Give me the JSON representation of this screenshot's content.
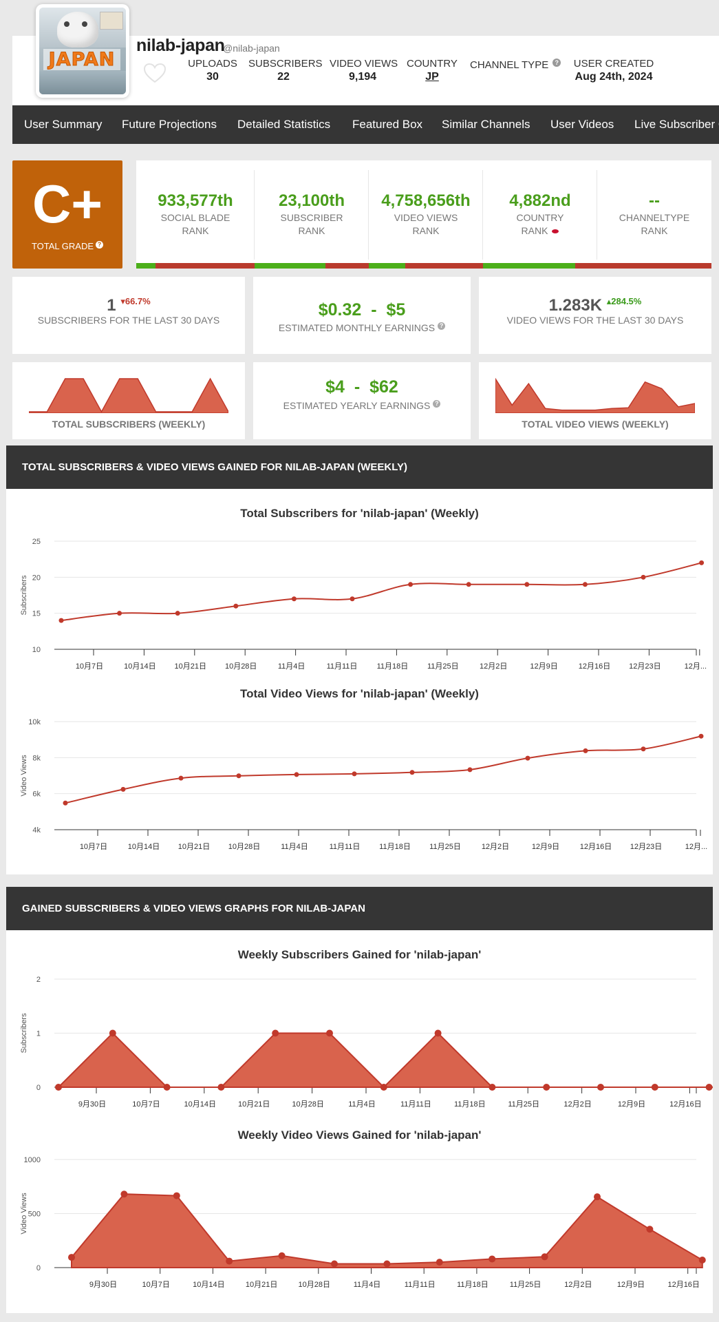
{
  "profile": {
    "name": "nilab-japan",
    "handle": "@nilab-japan",
    "avatar_text": "JAPAN"
  },
  "header_stats": [
    {
      "label": "UPLOADS",
      "value": "30"
    },
    {
      "label": "SUBSCRIBERS",
      "value": "22"
    },
    {
      "label": "VIDEO VIEWS",
      "value": "9,194"
    },
    {
      "label": "COUNTRY",
      "value": "JP"
    },
    {
      "label": "CHANNEL TYPE",
      "value": ""
    },
    {
      "label": "USER CREATED",
      "value": "Aug 24th, 2024"
    }
  ],
  "nav": {
    "items": [
      "User Summary",
      "Future Projections",
      "Detailed Statistics",
      "Featured Box",
      "Similar Channels",
      "User Videos",
      "Live Subscriber Count"
    ]
  },
  "grade": {
    "letter": "C+",
    "label": "TOTAL GRADE"
  },
  "ranks": [
    {
      "value": "933,577th",
      "label1": "SOCIAL BLADE",
      "label2": "RANK",
      "green_fraction": 0.16
    },
    {
      "value": "23,100th",
      "label1": "SUBSCRIBER",
      "label2": "RANK",
      "green_fraction": 0.62
    },
    {
      "value": "4,758,656th",
      "label1": "VIDEO VIEWS",
      "label2": "RANK",
      "green_fraction": 0.32
    },
    {
      "value": "4,882nd",
      "label1": "COUNTRY",
      "label2": "RANK",
      "green_fraction": 0.81
    },
    {
      "value": "--",
      "label1": "CHANNELTYPE",
      "label2": "RANK",
      "green_fraction": 0
    }
  ],
  "stats": {
    "subs_30": {
      "value": "1",
      "change": "66.7%",
      "label": "SUBSCRIBERS FOR THE LAST 30 DAYS"
    },
    "monthly": {
      "low": "$0.32",
      "sep": "-",
      "high": "$5",
      "label": "ESTIMATED MONTHLY EARNINGS"
    },
    "views_30": {
      "value": "1.283K",
      "change": "284.5%",
      "label": "VIDEO VIEWS FOR THE LAST 30 DAYS"
    },
    "yearly": {
      "low": "$4",
      "sep": "-",
      "high": "$62",
      "label": "ESTIMATED YEARLY EARNINGS"
    },
    "spark_subs_label": "TOTAL SUBSCRIBERS (WEEKLY)",
    "spark_views_label": "TOTAL VIDEO VIEWS (WEEKLY)"
  },
  "sparklines": {
    "subs": [
      0,
      0,
      1,
      1,
      0,
      1,
      1,
      0,
      0,
      0,
      1,
      0
    ],
    "views": [
      100,
      20,
      85,
      10,
      5,
      5,
      5,
      10,
      12,
      90,
      70,
      15,
      25
    ]
  },
  "section1": {
    "title": "TOTAL SUBSCRIBERS & VIDEO VIEWS GAINED FOR NILAB-JAPAN (WEEKLY)"
  },
  "section2": {
    "title": "GAINED SUBSCRIBERS & VIDEO VIEWS GRAPHS FOR NILAB-JAPAN"
  },
  "colors": {
    "accent": "#c0392b",
    "fill": "#d9634d",
    "green": "#4a9e1c",
    "grade": "#c0620a",
    "dark": "#353535"
  },
  "chart_data": [
    {
      "type": "line",
      "title": "Total Subscribers for 'nilab-japan' (Weekly)",
      "ylabel": "Subscribers",
      "ylim": [
        10,
        25
      ],
      "yticks": [
        10,
        15,
        20,
        25
      ],
      "x_tick_labels": [
        "10月7日",
        "10月14日",
        "10月21日",
        "10月28日",
        "11月4日",
        "11月11日",
        "11月18日",
        "11月25日",
        "12月2日",
        "12月9日",
        "12月16日",
        "12月23日",
        "12月..."
      ],
      "values": [
        14,
        15,
        15,
        16,
        17,
        17,
        19,
        19,
        19,
        19,
        20,
        22
      ]
    },
    {
      "type": "line",
      "title": "Total Video Views for 'nilab-japan' (Weekly)",
      "ylabel": "Video Views",
      "ylim": [
        4000,
        10000
      ],
      "yticks": [
        "4k",
        "6k",
        "8k",
        "10k"
      ],
      "x_tick_labels": [
        "10月7日",
        "10月14日",
        "10月21日",
        "10月28日",
        "11月4日",
        "11月11日",
        "11月18日",
        "11月25日",
        "12月2日",
        "12月9日",
        "12月16日",
        "12月23日",
        "12月..."
      ],
      "values": [
        5480,
        6240,
        6860,
        6990,
        7060,
        7100,
        7180,
        7330,
        7970,
        8380,
        8480,
        9190
      ]
    },
    {
      "type": "area",
      "title": "Weekly Subscribers Gained for 'nilab-japan'",
      "ylabel": "Subscribers",
      "ylim": [
        0,
        2
      ],
      "yticks": [
        0,
        1,
        2
      ],
      "x_tick_labels": [
        "9月30日",
        "10月7日",
        "10月14日",
        "10月21日",
        "10月28日",
        "11月4日",
        "11月11日",
        "11月18日",
        "11月25日",
        "12月2日",
        "12月9日",
        "12月16日"
      ],
      "values": [
        0,
        1,
        0,
        0,
        1,
        1,
        0,
        1,
        0,
        0,
        0,
        0,
        0,
        0
      ]
    },
    {
      "type": "area",
      "title": "Weekly Video Views Gained for 'nilab-japan'",
      "ylabel": "Video Views",
      "ylim": [
        0,
        1000
      ],
      "yticks": [
        0,
        500,
        1000
      ],
      "x_tick_labels": [
        "9月30日",
        "10月7日",
        "10月14日",
        "10月21日",
        "10月28日",
        "11月4日",
        "11月11日",
        "11月18日",
        "11月25日",
        "12月2日",
        "12月9日",
        "12月16日"
      ],
      "values": [
        95,
        680,
        665,
        60,
        110,
        35,
        35,
        50,
        80,
        100,
        655,
        355,
        70
      ]
    }
  ]
}
